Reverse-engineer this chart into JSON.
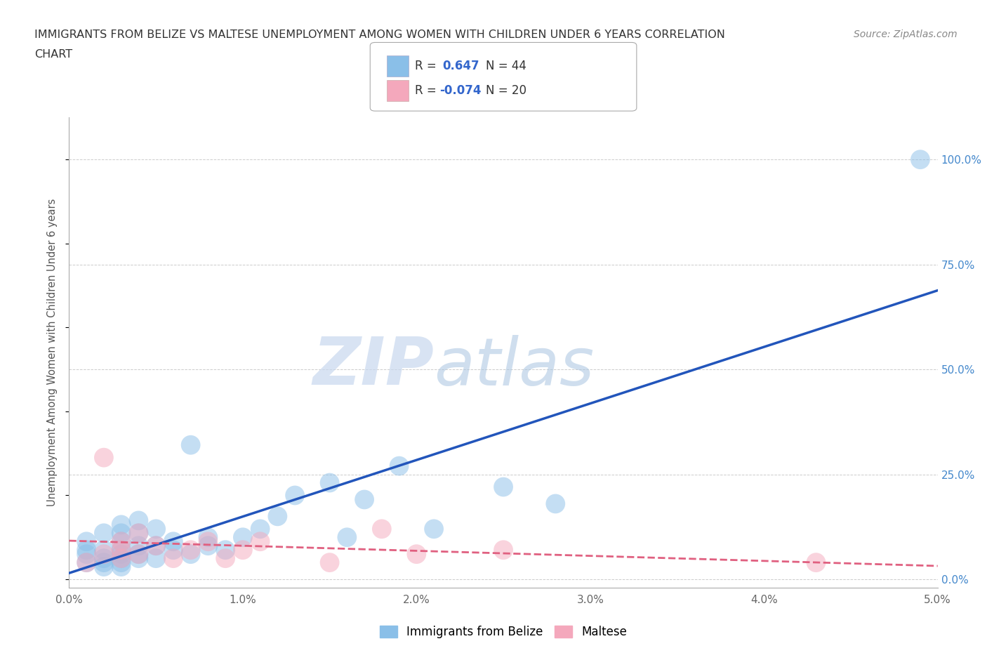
{
  "title_line1": "IMMIGRANTS FROM BELIZE VS MALTESE UNEMPLOYMENT AMONG WOMEN WITH CHILDREN UNDER 6 YEARS CORRELATION",
  "title_line2": "CHART",
  "source": "Source: ZipAtlas.com",
  "ylabel": "Unemployment Among Women with Children Under 6 years",
  "xlim": [
    0.0,
    0.05
  ],
  "ylim": [
    -0.02,
    1.1
  ],
  "xticks": [
    0.0,
    0.01,
    0.02,
    0.03,
    0.04,
    0.05
  ],
  "xticklabels": [
    "0.0%",
    "1.0%",
    "2.0%",
    "3.0%",
    "4.0%",
    "5.0%"
  ],
  "yticks_right": [
    0.0,
    0.25,
    0.5,
    0.75,
    1.0
  ],
  "yticklabels_right": [
    "0.0%",
    "25.0%",
    "50.0%",
    "75.0%",
    "100.0%"
  ],
  "watermark_zip": "ZIP",
  "watermark_atlas": "atlas",
  "legend_r_blue": "R =  0.647",
  "legend_n_blue": "N = 44",
  "legend_r_pink": "R = -0.074",
  "legend_n_pink": "N = 20",
  "blue_color": "#8abfe8",
  "pink_color": "#f4a8bc",
  "blue_line_color": "#2255bb",
  "pink_line_color": "#e06080",
  "blue_scatter_x": [
    0.001,
    0.001,
    0.001,
    0.001,
    0.002,
    0.002,
    0.002,
    0.002,
    0.002,
    0.003,
    0.003,
    0.003,
    0.003,
    0.003,
    0.003,
    0.003,
    0.003,
    0.004,
    0.004,
    0.004,
    0.004,
    0.004,
    0.005,
    0.005,
    0.005,
    0.006,
    0.006,
    0.007,
    0.007,
    0.008,
    0.008,
    0.009,
    0.01,
    0.011,
    0.012,
    0.013,
    0.015,
    0.016,
    0.017,
    0.019,
    0.021,
    0.025,
    0.028,
    0.049
  ],
  "blue_scatter_y": [
    0.04,
    0.06,
    0.07,
    0.09,
    0.03,
    0.04,
    0.05,
    0.07,
    0.11,
    0.03,
    0.04,
    0.05,
    0.06,
    0.07,
    0.09,
    0.11,
    0.13,
    0.05,
    0.06,
    0.08,
    0.11,
    0.14,
    0.05,
    0.08,
    0.12,
    0.07,
    0.09,
    0.06,
    0.32,
    0.08,
    0.1,
    0.07,
    0.1,
    0.12,
    0.15,
    0.2,
    0.23,
    0.1,
    0.19,
    0.27,
    0.12,
    0.22,
    0.18,
    1.0
  ],
  "pink_scatter_x": [
    0.001,
    0.002,
    0.002,
    0.003,
    0.003,
    0.003,
    0.004,
    0.004,
    0.005,
    0.006,
    0.007,
    0.008,
    0.009,
    0.01,
    0.011,
    0.015,
    0.018,
    0.02,
    0.025,
    0.043
  ],
  "pink_scatter_y": [
    0.04,
    0.06,
    0.29,
    0.05,
    0.07,
    0.09,
    0.06,
    0.11,
    0.08,
    0.05,
    0.07,
    0.09,
    0.05,
    0.07,
    0.09,
    0.04,
    0.12,
    0.06,
    0.07,
    0.04
  ],
  "background_color": "#ffffff",
  "grid_color": "#cccccc"
}
